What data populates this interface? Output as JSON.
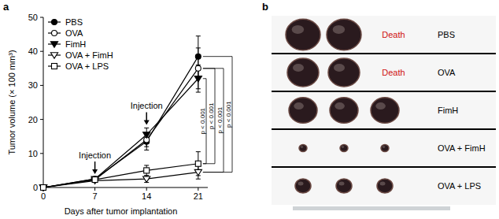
{
  "chart_data": {
    "type": "line",
    "x_label": "Days after tumor implantation",
    "y_label": "Tumor volume (× 100 mm³)",
    "x": [
      0,
      7,
      14,
      21
    ],
    "xlim": [
      0,
      22.3
    ],
    "xticks": [
      0,
      7,
      14,
      21
    ],
    "ylim": [
      0,
      50
    ],
    "yticks": [
      0,
      10,
      20,
      30,
      40,
      50
    ],
    "legend": "upper left",
    "series": [
      {
        "name": "PBS",
        "color": "#000000",
        "marker": "filled-circle",
        "line_style": "solid",
        "values": [
          0,
          2.5,
          13.5,
          38.5
        ],
        "errors": [
          0,
          0.5,
          2.5,
          6
        ]
      },
      {
        "name": "OVA",
        "color": "#000000",
        "marker": "open-circle",
        "line_style": "solid",
        "values": [
          0,
          2.3,
          14,
          35
        ],
        "errors": [
          0,
          0.5,
          2,
          6
        ]
      },
      {
        "name": "FimH",
        "color": "#000000",
        "marker": "filled-triangle-down",
        "line_style": "solid",
        "values": [
          0,
          2.5,
          15.5,
          32
        ],
        "errors": [
          0,
          0.5,
          2,
          4
        ]
      },
      {
        "name": "OVA + FimH",
        "color": "#000000",
        "marker": "open-triangle-down",
        "line_style": "solid",
        "values": [
          0,
          2,
          2.5,
          4.5
        ],
        "errors": [
          0,
          0.4,
          1,
          2
        ]
      },
      {
        "name": "OVA + LPS",
        "color": "#000000",
        "marker": "open-square",
        "line_style": "solid",
        "values": [
          0,
          2.3,
          5,
          7
        ],
        "errors": [
          0,
          0.5,
          1.5,
          3.5
        ]
      }
    ],
    "annotations": [
      {
        "text": "Injection",
        "x": 7
      },
      {
        "text": "Injection",
        "x": 14
      }
    ],
    "comparisons": [
      {
        "between": [
          "FimH",
          "OVA + LPS"
        ],
        "label": "p < 0.001"
      },
      {
        "between": [
          "OVA",
          "OVA + LPS"
        ],
        "label": "p < 0.001"
      },
      {
        "between": [
          "OVA",
          "OVA + FimH"
        ],
        "label": "p < 0.001"
      },
      {
        "between": [
          "PBS",
          "OVA + FimH"
        ],
        "label": "p < 0.001"
      }
    ]
  },
  "panel_labels": [
    "a",
    "b"
  ],
  "photo_panel": {
    "rows": [
      {
        "group": "PBS",
        "tumors": 2,
        "note": "Death"
      },
      {
        "group": "OVA",
        "tumors": 2,
        "note": "Death"
      },
      {
        "group": "FimH",
        "tumors": 3
      },
      {
        "group": "OVA + FimH",
        "tumors": 3
      },
      {
        "group": "OVA + LPS",
        "tumors": 3
      }
    ]
  }
}
